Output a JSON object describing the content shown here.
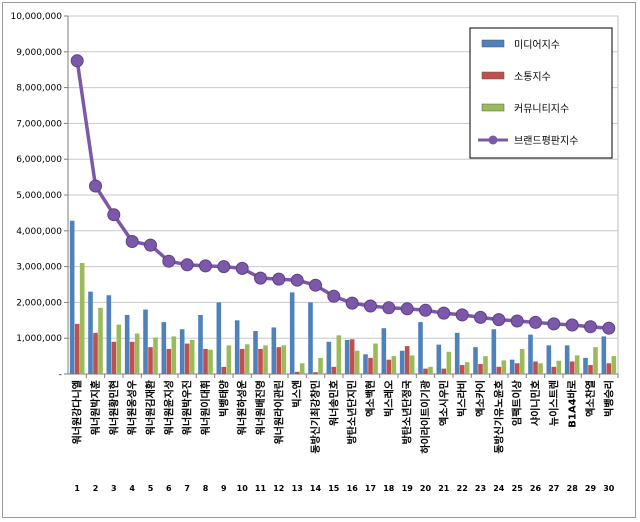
{
  "chart_data": {
    "type": "bar",
    "title": "",
    "xlabel": "",
    "ylabel": "",
    "ylim": [
      0,
      10000000
    ],
    "y_ticks": [
      "-",
      "1,000,000",
      "2,000,000",
      "3,000,000",
      "4,000,000",
      "5,000,000",
      "6,000,000",
      "7,000,000",
      "8,000,000",
      "9,000,000",
      "10,000,000"
    ],
    "grid": true,
    "legend_position": "top-right",
    "categories": [
      "워너원강다니엘",
      "워너원박지훈",
      "워너원황민현",
      "워너원옹성우",
      "워너원김재환",
      "워너원윤지성",
      "워너원박우진",
      "워너원이대휘",
      "빅뱅태양",
      "워너원하성운",
      "워너원배진영",
      "워너원라이관린",
      "빅스엔",
      "동방신기최강창민",
      "워너송민호",
      "방탄소년단지민",
      "엑소백현",
      "빅스레오",
      "방탄소년단정국",
      "하이라이트이기광",
      "엑소시우민",
      "빅스라비",
      "엑소카이",
      "동방신기유노윤호",
      "임팩트이상",
      "샤이니민호",
      "뉴이스트렌",
      "B1A4바로",
      "엑소찬열",
      "빅뱅승리"
    ],
    "ranks": [
      "1",
      "2",
      "3",
      "4",
      "5",
      "6",
      "7",
      "8",
      "9",
      "10",
      "11",
      "12",
      "13",
      "14",
      "15",
      "16",
      "17",
      "18",
      "19",
      "20",
      "21",
      "22",
      "23",
      "24",
      "25",
      "26",
      "27",
      "28",
      "29",
      "30"
    ],
    "series": [
      {
        "name": "미디어지수",
        "type": "bar",
        "color": "#4f81bd",
        "values": [
          4280000,
          2300000,
          2200000,
          1650000,
          1800000,
          1450000,
          1250000,
          1650000,
          2000000,
          1500000,
          1200000,
          1300000,
          2280000,
          2000000,
          900000,
          950000,
          550000,
          1280000,
          650000,
          1450000,
          820000,
          1150000,
          750000,
          1250000,
          400000,
          1100000,
          800000,
          800000,
          450000,
          1050000
        ]
      },
      {
        "name": "소통지수",
        "type": "bar",
        "color": "#c0504d",
        "values": [
          1400000,
          1150000,
          900000,
          900000,
          750000,
          700000,
          850000,
          700000,
          200000,
          700000,
          700000,
          750000,
          60000,
          50000,
          200000,
          970000,
          450000,
          400000,
          780000,
          150000,
          150000,
          250000,
          280000,
          200000,
          300000,
          350000,
          200000,
          350000,
          250000,
          300000
        ]
      },
      {
        "name": "커뮤니티지수",
        "type": "bar",
        "color": "#9bbb59",
        "values": [
          3100000,
          1850000,
          1380000,
          1130000,
          1020000,
          1050000,
          950000,
          680000,
          800000,
          830000,
          800000,
          800000,
          300000,
          450000,
          1080000,
          650000,
          850000,
          500000,
          520000,
          200000,
          620000,
          330000,
          500000,
          380000,
          700000,
          300000,
          370000,
          520000,
          750000,
          500000
        ]
      },
      {
        "name": "브랜드평판지수",
        "type": "line",
        "color": "#7b59a8",
        "values": [
          8750000,
          5250000,
          4450000,
          3700000,
          3600000,
          3150000,
          3050000,
          3020000,
          3000000,
          2950000,
          2680000,
          2650000,
          2620000,
          2480000,
          2170000,
          1980000,
          1900000,
          1850000,
          1820000,
          1780000,
          1700000,
          1650000,
          1580000,
          1520000,
          1480000,
          1440000,
          1400000,
          1370000,
          1320000,
          1280000
        ]
      }
    ]
  }
}
